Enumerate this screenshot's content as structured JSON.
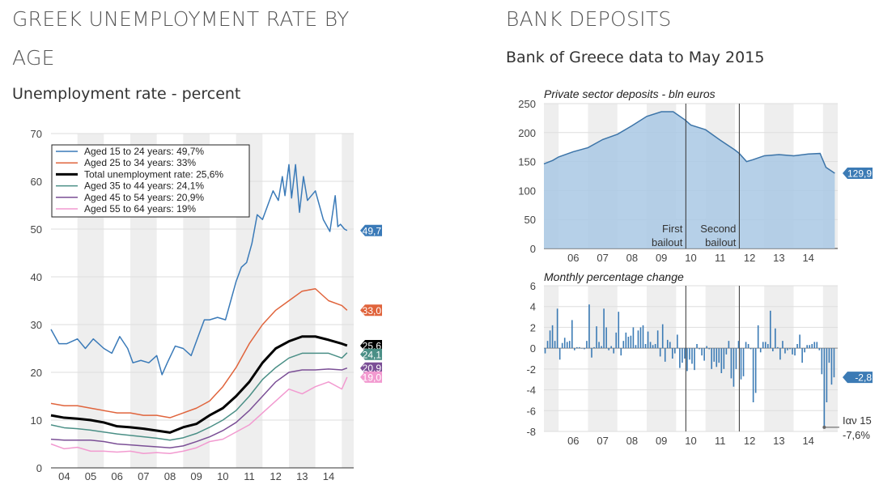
{
  "left": {
    "title": "GREEK UNEMPLOYMENT RATE BY AGE",
    "subtitle": "Unemployment rate - percent"
  },
  "right": {
    "title": "BANK DEPOSITS",
    "subtitle": "Bank of Greece data to May 2015"
  },
  "colors": {
    "youth": "#3a7ab8",
    "age25": "#e0643c",
    "total": "#000000",
    "age35": "#4a8f86",
    "age45": "#7b4f96",
    "age55": "#f29ad0",
    "area": "#a9c8e4",
    "areaLine": "#3c74a8",
    "bar": "#3c7bb5"
  },
  "chart_data": [
    {
      "type": "line",
      "title": "Unemployment rate - percent",
      "ylim": [
        0,
        70
      ],
      "yticks": [
        "0",
        "10",
        "20",
        "30",
        "40",
        "50",
        "60",
        "70"
      ],
      "xticks": [
        "04",
        "05",
        "06",
        "07",
        "08",
        "09",
        "10",
        "11",
        "12",
        "13",
        "14"
      ],
      "xlim": [
        2004,
        2015.45
      ],
      "grid": true,
      "legend_position": "top-left",
      "x": [
        2004,
        2004.5,
        2005,
        2005.5,
        2006,
        2006.5,
        2007,
        2007.5,
        2008,
        2008.5,
        2009,
        2009.5,
        2010,
        2010.5,
        2011,
        2011.5,
        2012,
        2012.5,
        2013,
        2013.5,
        2014,
        2014.5,
        2015,
        2015.2
      ],
      "series": [
        {
          "key": "youth",
          "name": "Aged 15 to 24 years: 49,7%",
          "end_label": "49,7",
          "x": [
            2004,
            2004.3,
            2004.6,
            2005,
            2005.3,
            2005.6,
            2006,
            2006.3,
            2006.6,
            2006.9,
            2007.1,
            2007.4,
            2007.7,
            2008,
            2008.2,
            2008.4,
            2008.7,
            2009,
            2009.3,
            2009.6,
            2009.8,
            2010,
            2010.3,
            2010.6,
            2010.8,
            2011,
            2011.2,
            2011.4,
            2011.6,
            2011.8,
            2012,
            2012.2,
            2012.4,
            2012.6,
            2012.75,
            2012.85,
            2013,
            2013.1,
            2013.25,
            2013.4,
            2013.55,
            2013.7,
            2013.85,
            2014,
            2014.3,
            2014.55,
            2014.75,
            2014.85,
            2014.95,
            2015.1,
            2015.2
          ],
          "values": [
            29,
            26,
            26,
            27,
            25,
            27,
            25,
            24,
            27.5,
            25,
            22,
            22.5,
            22,
            23.5,
            19.5,
            22,
            25.5,
            25,
            23.5,
            28,
            31,
            31,
            31.5,
            31,
            35,
            39,
            42,
            43,
            47,
            53,
            52,
            55,
            58,
            56,
            61,
            57,
            63.5,
            56.5,
            63.5,
            53.5,
            61,
            56,
            57,
            58,
            52,
            49.5,
            57,
            50.5,
            51,
            50,
            49.7
          ]
        },
        {
          "key": "age25",
          "name": "Aged 25 to 34 years: 33%",
          "end_label": "33,0",
          "values": [
            13.5,
            13,
            13,
            12.5,
            12,
            11.5,
            11.5,
            11,
            11,
            10.5,
            11.5,
            12.5,
            14,
            17,
            21,
            26,
            30,
            33,
            35,
            37,
            37.5,
            35,
            34,
            33
          ]
        },
        {
          "key": "total",
          "name": "Total unemployment rate: 25,6%",
          "end_label": "25,6",
          "values": [
            11,
            10.5,
            10.3,
            10,
            9.5,
            8.7,
            8.5,
            8.2,
            7.8,
            7.4,
            8.5,
            9.2,
            11,
            12.5,
            15,
            18,
            22,
            25,
            26.5,
            27.5,
            27.5,
            26.8,
            26,
            25.6
          ]
        },
        {
          "key": "age35",
          "name": "Aged 35 to 44 years: 24,1%",
          "end_label": "24,1",
          "values": [
            9,
            8.4,
            8.2,
            7.9,
            7.5,
            7.1,
            6.8,
            6.5,
            6.2,
            5.8,
            6.3,
            7.2,
            8.5,
            10,
            12,
            15,
            18.5,
            21,
            23,
            24,
            24,
            24,
            23,
            24.1
          ]
        },
        {
          "key": "age45",
          "name": "Aged 45 to 54 years: 20,9%",
          "end_label": "20,9",
          "values": [
            6,
            5.8,
            5.8,
            5.8,
            5.5,
            5,
            4.8,
            4.6,
            4.4,
            4.2,
            4.6,
            5.5,
            6.5,
            7.8,
            9.5,
            12,
            15,
            18,
            20,
            20.5,
            20.5,
            20.7,
            20.5,
            20.9
          ]
        },
        {
          "key": "age55",
          "name": "Aged 55 to 64 years: 19%",
          "end_label": "19,0",
          "values": [
            5,
            4,
            4.3,
            3.5,
            3.5,
            3.3,
            3.5,
            3,
            3.2,
            3,
            3.5,
            4.2,
            5.5,
            6,
            7.5,
            9,
            11.5,
            14,
            16.5,
            15.5,
            17,
            18,
            16.5,
            19
          ]
        }
      ]
    },
    {
      "type": "area",
      "title": "Private sector deposits - bln euros",
      "ylim": [
        0,
        250
      ],
      "yticks": [
        "0",
        "50",
        "100",
        "150",
        "200",
        "250"
      ],
      "xticks": [
        "06",
        "07",
        "08",
        "09",
        "10",
        "11",
        "12",
        "13",
        "14"
      ],
      "xlim": [
        2005.5,
        2015.5
      ],
      "x": [
        2005.5,
        2005.8,
        2006,
        2006.5,
        2007,
        2007.5,
        2008,
        2008.5,
        2009,
        2009.5,
        2009.9,
        2010.3,
        2010.5,
        2011,
        2011.5,
        2012,
        2012.15,
        2012.4,
        2012.6,
        2013,
        2013.5,
        2014,
        2014.5,
        2014.9,
        2015.1,
        2015.4
      ],
      "values": [
        146,
        152,
        158,
        167,
        174,
        188,
        197,
        212,
        228,
        236,
        236,
        222,
        213,
        205,
        187,
        170,
        164,
        150,
        153,
        160,
        162,
        160,
        163,
        164,
        140,
        129.9
      ],
      "end_label": "129,9",
      "annotations": [
        {
          "x": 2010.33,
          "lines": [
            "First",
            "bailout"
          ]
        },
        {
          "x": 2012.15,
          "lines": [
            "Second",
            "bailout"
          ]
        }
      ]
    },
    {
      "type": "bar",
      "title": "Monthly percentage change",
      "ylim": [
        -8,
        6
      ],
      "yticks": [
        "-8",
        "-6",
        "-4",
        "-2",
        "0",
        "2",
        "4",
        "6"
      ],
      "xticks": [
        "06",
        "07",
        "08",
        "09",
        "10",
        "11",
        "12",
        "13",
        "14"
      ],
      "xlim": [
        2005.5,
        2015.5
      ],
      "start": 2005.5,
      "values": [
        -0.5,
        0.7,
        1.7,
        2.2,
        0.7,
        3.8,
        -1.1,
        0.5,
        1.0,
        0.6,
        0.7,
        2.7,
        -0.2,
        0.1,
        0.1,
        0.0,
        -0.1,
        0.7,
        4.2,
        -0.9,
        0.1,
        2.1,
        0.6,
        0.2,
        3.8,
        2.0,
        -0.2,
        0.2,
        -0.5,
        1.5,
        3.5,
        -0.7,
        0.7,
        1.5,
        1.1,
        1.2,
        2.0,
        0.3,
        1.7,
        2.0,
        2.2,
        0.4,
        1.6,
        0.6,
        0.3,
        0.4,
        1.7,
        -0.8,
        2.3,
        -1.3,
        0.8,
        0.6,
        -1.0,
        -0.5,
        1.3,
        -1.9,
        -1.4,
        -1.0,
        -2.2,
        -1.1,
        -1.5,
        -2.1,
        0.4,
        -0.1,
        -0.7,
        -1.2,
        0.2,
        -0.1,
        -2.0,
        -1.3,
        -1.8,
        -1.4,
        -2.4,
        -2.0,
        -0.6,
        0.7,
        -2.9,
        -3.7,
        -2.0,
        0.7,
        -3.0,
        -2.7,
        0.6,
        0.4,
        -0.1,
        -5.2,
        -4.3,
        2.2,
        -0.4,
        0.6,
        0.6,
        0.4,
        3.6,
        -0.3,
        1.9,
        0.1,
        -1.1,
        0.7,
        -0.5,
        -0.2,
        -0.1,
        -0.6,
        -0.7,
        0.4,
        1.3,
        -1.4,
        -0.4,
        0.3,
        0.3,
        0.4,
        0.6,
        0.6,
        -0.2,
        -2.5,
        -7.6,
        -5.2,
        -1.4,
        -3.5,
        -2.8
      ],
      "end_label": "-2,8",
      "annotation": {
        "lines": [
          "Ιαν 15",
          "-7,6%"
        ],
        "index": 114
      }
    }
  ]
}
